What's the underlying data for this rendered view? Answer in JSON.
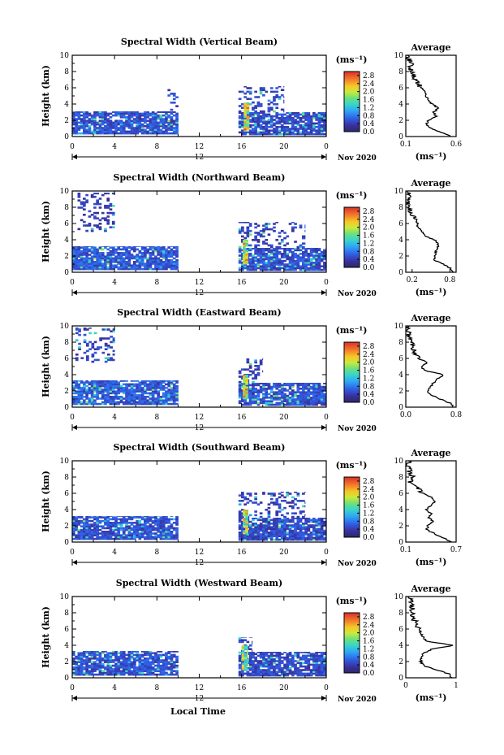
{
  "figure": {
    "local_time_label": "Local Time",
    "date_label": "Nov 2020",
    "colorbar_unit": "(ms⁻¹)",
    "average_unit": "(ms⁻¹)",
    "height_label": "Height (km)",
    "average_title": "Average"
  },
  "chart_data": [
    {
      "type": "heatmap",
      "title": "Spectral Width (Vertical Beam)",
      "ylabel": "Height (km)",
      "xlabel": "",
      "x_ticks": [
        "0",
        "4",
        "8",
        "12",
        "16",
        "20",
        "0"
      ],
      "y_ticks": [
        "0",
        "2",
        "4",
        "6",
        "8",
        "10"
      ],
      "xlim": [
        0,
        24
      ],
      "ylim": [
        0,
        10
      ],
      "colorbar": {
        "label": "(ms⁻¹)",
        "ticks": [
          "0.0",
          "0.4",
          "0.8",
          "1.2",
          "1.6",
          "2.0",
          "2.4",
          "2.8"
        ],
        "range": [
          0,
          3.0
        ]
      },
      "time_marker": "12",
      "date": "Nov 2020",
      "data_blocks": [
        {
          "t0": 0,
          "t1": 10,
          "h0": 0.3,
          "h1": 3.1,
          "v": 0.55
        },
        {
          "t0": 9,
          "t1": 10,
          "h0": 3.2,
          "h1": 6.0,
          "v": 0.5
        },
        {
          "t0": 15.7,
          "t1": 24,
          "h0": 0.2,
          "h1": 3.0,
          "v": 0.5
        },
        {
          "t0": 15.7,
          "t1": 20,
          "h0": 3.0,
          "h1": 6.2,
          "v": 0.45
        },
        {
          "t0": 16.2,
          "t1": 16.7,
          "h0": 0.8,
          "h1": 4.2,
          "v": 2.6
        }
      ],
      "average": {
        "xlabel": "(ms⁻¹)",
        "xlim": [
          0.1,
          0.6
        ],
        "x_ticks": [
          "0.1",
          "0.6"
        ],
        "profile": [
          [
            0,
            0.55
          ],
          [
            0.5,
            0.45
          ],
          [
            1,
            0.35
          ],
          [
            1.5,
            0.3
          ],
          [
            2,
            0.33
          ],
          [
            2.5,
            0.4
          ],
          [
            3,
            0.38
          ],
          [
            3.5,
            0.42
          ],
          [
            4,
            0.36
          ],
          [
            4.5,
            0.32
          ],
          [
            5,
            0.3
          ],
          [
            5.5,
            0.3
          ],
          [
            6,
            0.25
          ],
          [
            6.5,
            0.22
          ],
          [
            7,
            0.2
          ],
          [
            7.5,
            0.18
          ],
          [
            8,
            0.15
          ],
          [
            8.5,
            0.14
          ],
          [
            9,
            0.18
          ],
          [
            9.5,
            0.13
          ],
          [
            10,
            0.12
          ]
        ]
      }
    },
    {
      "type": "heatmap",
      "title": "Spectral Width (Northward Beam)",
      "ylabel": "Height (km)",
      "xlabel": "",
      "x_ticks": [
        "0",
        "4",
        "8",
        "12",
        "16",
        "20",
        "0"
      ],
      "y_ticks": [
        "0",
        "2",
        "4",
        "6",
        "8",
        "10"
      ],
      "xlim": [
        0,
        24
      ],
      "ylim": [
        0,
        10
      ],
      "colorbar": {
        "label": "(ms⁻¹)",
        "ticks": [
          "0.0",
          "0.4",
          "0.8",
          "1.2",
          "1.6",
          "2.0",
          "2.4",
          "2.8"
        ],
        "range": [
          0,
          3.0
        ]
      },
      "time_marker": "12",
      "date": "Nov 2020",
      "data_blocks": [
        {
          "t0": 0,
          "t1": 10,
          "h0": 0.3,
          "h1": 3.2,
          "v": 0.6
        },
        {
          "t0": 0.5,
          "t1": 4,
          "h0": 5.0,
          "h1": 9.8,
          "v": 0.4
        },
        {
          "t0": 15.7,
          "t1": 24,
          "h0": 0.2,
          "h1": 3.0,
          "v": 0.55
        },
        {
          "t0": 15.7,
          "t1": 22,
          "h0": 3.0,
          "h1": 6.2,
          "v": 0.45
        },
        {
          "t0": 16.1,
          "t1": 16.6,
          "h0": 1.0,
          "h1": 4.0,
          "v": 2.5
        }
      ],
      "average": {
        "xlabel": "(ms⁻¹)",
        "xlim": [
          0.1,
          0.9
        ],
        "x_ticks": [
          "0.2",
          "0.8"
        ],
        "profile": [
          [
            0,
            0.85
          ],
          [
            0.5,
            0.8
          ],
          [
            1,
            0.7
          ],
          [
            1.5,
            0.55
          ],
          [
            2,
            0.55
          ],
          [
            2.5,
            0.58
          ],
          [
            3,
            0.6
          ],
          [
            3.5,
            0.62
          ],
          [
            4,
            0.55
          ],
          [
            4.5,
            0.4
          ],
          [
            5,
            0.35
          ],
          [
            5.5,
            0.3
          ],
          [
            6,
            0.28
          ],
          [
            6.5,
            0.25
          ],
          [
            7,
            0.2
          ],
          [
            7.5,
            0.18
          ],
          [
            8,
            0.15
          ],
          [
            8.5,
            0.13
          ],
          [
            9,
            0.12
          ],
          [
            9.5,
            0.14
          ],
          [
            10,
            0.12
          ]
        ]
      }
    },
    {
      "type": "heatmap",
      "title": "Spectral Width (Eastward Beam)",
      "ylabel": "Height (km)",
      "xlabel": "",
      "x_ticks": [
        "0",
        "4",
        "8",
        "12",
        "16",
        "20",
        "0"
      ],
      "y_ticks": [
        "0",
        "2",
        "4",
        "6",
        "8",
        "10"
      ],
      "xlim": [
        0,
        24
      ],
      "ylim": [
        0,
        10
      ],
      "colorbar": {
        "label": "(ms⁻¹)",
        "ticks": [
          "0.0",
          "0.4",
          "0.8",
          "1.2",
          "1.6",
          "2.0",
          "2.4",
          "2.8"
        ],
        "range": [
          0,
          3.0
        ]
      },
      "time_marker": "12",
      "date": "Nov 2020",
      "data_blocks": [
        {
          "t0": 0,
          "t1": 10,
          "h0": 0.3,
          "h1": 3.3,
          "v": 0.6
        },
        {
          "t0": 0.3,
          "t1": 4,
          "h0": 5.5,
          "h1": 9.8,
          "v": 0.45
        },
        {
          "t0": 15.7,
          "t1": 24,
          "h0": 0.2,
          "h1": 3.0,
          "v": 0.55
        },
        {
          "t0": 15.7,
          "t1": 18,
          "h0": 3.0,
          "h1": 6.0,
          "v": 0.45
        },
        {
          "t0": 16.1,
          "t1": 16.6,
          "h0": 1.0,
          "h1": 4.0,
          "v": 2.6
        }
      ],
      "average": {
        "xlabel": "",
        "xlim": [
          0.0,
          0.8
        ],
        "x_ticks": [
          "0.0",
          "0.8"
        ],
        "profile": [
          [
            0,
            0.75
          ],
          [
            0.5,
            0.7
          ],
          [
            1,
            0.55
          ],
          [
            1.5,
            0.4
          ],
          [
            2,
            0.35
          ],
          [
            2.5,
            0.38
          ],
          [
            3,
            0.45
          ],
          [
            3.5,
            0.5
          ],
          [
            4,
            0.6
          ],
          [
            4.5,
            0.3
          ],
          [
            5,
            0.25
          ],
          [
            5.5,
            0.35
          ],
          [
            6,
            0.2
          ],
          [
            6.5,
            0.15
          ],
          [
            7,
            0.12
          ],
          [
            7.5,
            0.1
          ],
          [
            8,
            0.08
          ],
          [
            8.5,
            0.06
          ],
          [
            9,
            0.05
          ],
          [
            9.5,
            0.03
          ],
          [
            10,
            0.05
          ]
        ]
      }
    },
    {
      "type": "heatmap",
      "title": "Spectral Width (Southward Beam)",
      "ylabel": "Height (km)",
      "xlabel": "",
      "x_ticks": [
        "0",
        "4",
        "8",
        "12",
        "16",
        "20",
        "0"
      ],
      "y_ticks": [
        "0",
        "2",
        "4",
        "6",
        "8",
        "10"
      ],
      "xlim": [
        0,
        24
      ],
      "ylim": [
        0,
        10
      ],
      "colorbar": {
        "label": "(ms⁻¹)",
        "ticks": [
          "0.0",
          "0.4",
          "0.8",
          "1.2",
          "1.6",
          "2.0",
          "2.4",
          "2.8"
        ],
        "range": [
          0,
          3.0
        ]
      },
      "time_marker": "12",
      "date": "Nov 2020",
      "data_blocks": [
        {
          "t0": 0,
          "t1": 10,
          "h0": 0.3,
          "h1": 3.2,
          "v": 0.55
        },
        {
          "t0": 15.7,
          "t1": 24,
          "h0": 0.2,
          "h1": 3.0,
          "v": 0.5
        },
        {
          "t0": 15.7,
          "t1": 22,
          "h0": 3.0,
          "h1": 6.2,
          "v": 0.45
        },
        {
          "t0": 16.1,
          "t1": 16.6,
          "h0": 1.0,
          "h1": 4.0,
          "v": 2.3
        }
      ],
      "average": {
        "xlabel": "(ms⁻¹)",
        "xlim": [
          0.1,
          0.7
        ],
        "x_ticks": [
          "0.1",
          "0.7"
        ],
        "profile": [
          [
            0,
            0.65
          ],
          [
            0.5,
            0.55
          ],
          [
            1,
            0.45
          ],
          [
            1.5,
            0.35
          ],
          [
            2,
            0.36
          ],
          [
            2.5,
            0.42
          ],
          [
            3,
            0.38
          ],
          [
            3.5,
            0.4
          ],
          [
            4,
            0.35
          ],
          [
            4.5,
            0.4
          ],
          [
            5,
            0.45
          ],
          [
            5.5,
            0.42
          ],
          [
            6,
            0.3
          ],
          [
            6.5,
            0.25
          ],
          [
            7,
            0.2
          ],
          [
            7.5,
            0.15
          ],
          [
            8,
            0.18
          ],
          [
            8.5,
            0.14
          ],
          [
            9,
            0.15
          ],
          [
            9.5,
            0.12
          ],
          [
            10,
            0.13
          ]
        ]
      }
    },
    {
      "type": "heatmap",
      "title": "Spectral Width (Westward Beam)",
      "ylabel": "Height (km)",
      "xlabel": "Local Time",
      "x_ticks": [
        "0",
        "4",
        "8",
        "12",
        "16",
        "20",
        "0"
      ],
      "y_ticks": [
        "0",
        "2",
        "4",
        "6",
        "8",
        "10"
      ],
      "xlim": [
        0,
        24
      ],
      "ylim": [
        0,
        10
      ],
      "colorbar": {
        "label": "(ms⁻¹)",
        "ticks": [
          "0.0",
          "0.4",
          "0.8",
          "1.2",
          "1.6",
          "2.0",
          "2.4",
          "2.8"
        ],
        "range": [
          0,
          3.0
        ]
      },
      "time_marker": "12",
      "date": "Nov 2020",
      "data_blocks": [
        {
          "t0": 0,
          "t1": 10,
          "h0": 0.3,
          "h1": 3.3,
          "v": 0.55
        },
        {
          "t0": 15.7,
          "t1": 24,
          "h0": 0.2,
          "h1": 3.2,
          "v": 0.5
        },
        {
          "t0": 15.7,
          "t1": 17,
          "h0": 3.0,
          "h1": 5.0,
          "v": 0.45
        },
        {
          "t0": 16.0,
          "t1": 16.6,
          "h0": 1.0,
          "h1": 4.0,
          "v": 2.2
        }
      ],
      "average": {
        "xlabel": "(ms⁻¹)",
        "xlim": [
          0,
          1
        ],
        "x_ticks": [
          "0",
          "1"
        ],
        "profile": [
          [
            0,
            0.9
          ],
          [
            0.5,
            0.85
          ],
          [
            1,
            0.6
          ],
          [
            1.5,
            0.35
          ],
          [
            2,
            0.3
          ],
          [
            2.5,
            0.32
          ],
          [
            3,
            0.35
          ],
          [
            3.5,
            0.5
          ],
          [
            4,
            0.95
          ],
          [
            4.5,
            0.4
          ],
          [
            5,
            0.35
          ],
          [
            5.5,
            0.3
          ],
          [
            6,
            0.28
          ],
          [
            6.5,
            0.2
          ],
          [
            7,
            0.18
          ],
          [
            7.5,
            0.15
          ],
          [
            8,
            0.12
          ],
          [
            8.5,
            0.14
          ],
          [
            9,
            0.1
          ],
          [
            9.5,
            0.08
          ],
          [
            10,
            0.06
          ]
        ]
      }
    }
  ]
}
